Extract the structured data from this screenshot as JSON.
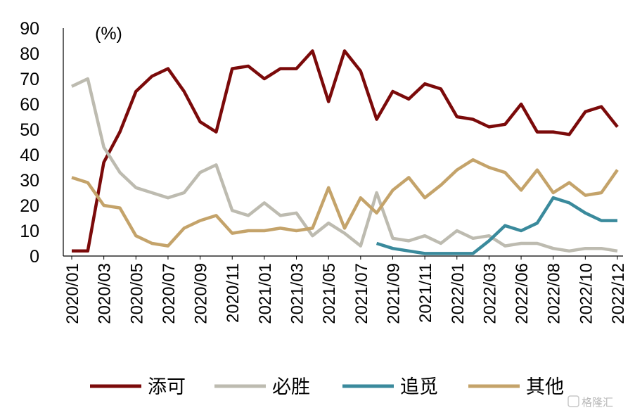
{
  "chart_data": {
    "type": "line",
    "unit_label": "(%)",
    "ylim": [
      0,
      90
    ],
    "yticks": [
      0,
      10,
      20,
      30,
      40,
      50,
      60,
      70,
      80,
      90
    ],
    "x": [
      "2020/01",
      "2020/02",
      "2020/03",
      "2020/04",
      "2020/05",
      "2020/06",
      "2020/07",
      "2020/08",
      "2020/09",
      "2020/10",
      "2020/11",
      "2020/12",
      "2021/01",
      "2021/02",
      "2021/03",
      "2021/04",
      "2021/05",
      "2021/06",
      "2021/07",
      "2021/08",
      "2021/09",
      "2021/10",
      "2021/11",
      "2021/12",
      "2022/01",
      "2022/02",
      "2022/03",
      "2022/04",
      "2022/06",
      "2022/07",
      "2022/08",
      "2022/09",
      "2022/10",
      "2022/11",
      "2022/12"
    ],
    "xtick_labels": [
      "2020/01",
      "2020/03",
      "2020/05",
      "2020/07",
      "2020/09",
      "2020/11",
      "2021/01",
      "2021/03",
      "2021/05",
      "2021/07",
      "2021/09",
      "2021/11",
      "2022/01",
      "2022/03",
      "2022/06",
      "2022/08",
      "2022/10",
      "2022/12"
    ],
    "series": [
      {
        "name": "添可",
        "color": "#7b0a0a",
        "values": [
          2,
          2,
          37,
          49,
          65,
          71,
          74,
          65,
          53,
          49,
          74,
          75,
          70,
          74,
          74,
          81,
          61,
          81,
          73,
          54,
          65,
          62,
          68,
          66,
          55,
          54,
          51,
          52,
          60,
          49,
          49,
          48,
          57,
          59,
          51
        ]
      },
      {
        "name": "必胜",
        "color": "#bdbbb0",
        "values": [
          67,
          70,
          43,
          33,
          27,
          25,
          23,
          25,
          33,
          36,
          18,
          16,
          21,
          16,
          17,
          8,
          13,
          9,
          4,
          25,
          7,
          6,
          8,
          5,
          10,
          7,
          8,
          4,
          5,
          5,
          3,
          2,
          3,
          3,
          2
        ]
      },
      {
        "name": "追觅",
        "color": "#3a8a9c",
        "values": [
          null,
          null,
          null,
          null,
          null,
          null,
          null,
          null,
          null,
          null,
          null,
          null,
          null,
          null,
          null,
          null,
          null,
          null,
          null,
          5,
          3,
          2,
          1,
          1,
          1,
          1,
          6,
          12,
          10,
          13,
          23,
          21,
          17,
          14,
          14
        ]
      },
      {
        "name": "其他",
        "color": "#c4a36a",
        "values": [
          31,
          29,
          20,
          19,
          8,
          5,
          4,
          11,
          14,
          16,
          9,
          10,
          10,
          11,
          10,
          11,
          27,
          11,
          23,
          17,
          26,
          31,
          23,
          28,
          34,
          38,
          35,
          33,
          26,
          34,
          25,
          29,
          24,
          25,
          34
        ]
      }
    ],
    "legend_position": "bottom",
    "grid": false
  },
  "watermark": {
    "text": "格隆汇"
  }
}
